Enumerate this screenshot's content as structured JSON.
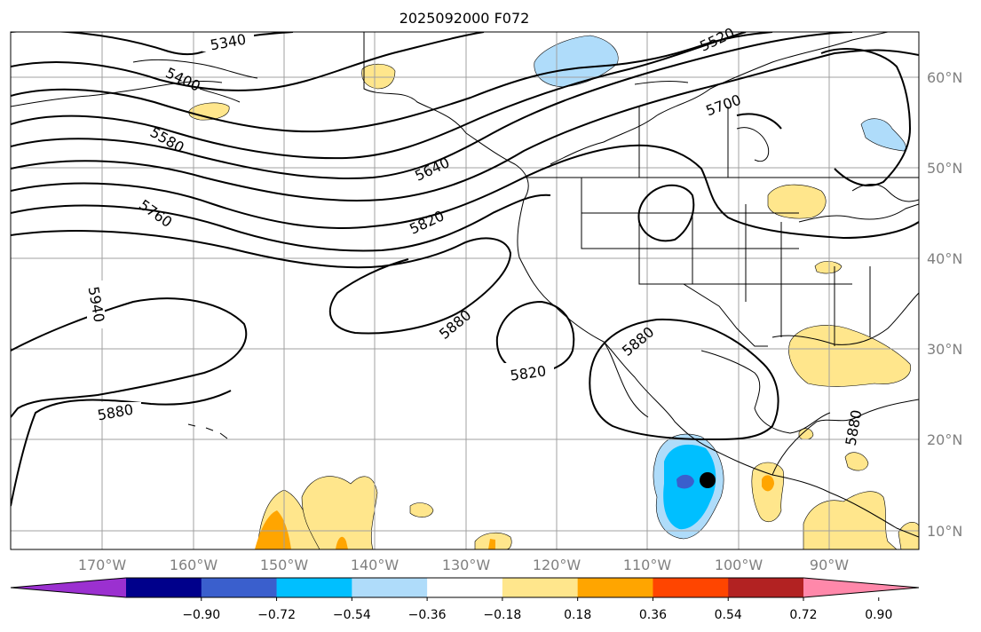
{
  "title": "2025092000 F072",
  "lat_labels": [
    "60°N",
    "50°N",
    "40°N",
    "30°N",
    "20°N",
    "10°N"
  ],
  "lon_labels": [
    "170°W",
    "160°W",
    "150°W",
    "140°W",
    "130°W",
    "120°W",
    "110°W",
    "100°W",
    "90°W"
  ],
  "contour_labels": [
    "5340",
    "5400",
    "5520",
    "5580",
    "5640",
    "5700",
    "5760",
    "5820",
    "5820",
    "5880",
    "5880",
    "5880",
    "5940",
    "5880"
  ],
  "colorbar": {
    "colors": [
      "#9b30d0",
      "#00008b",
      "#3a5fcd",
      "#00bfff",
      "#afdcfa",
      "#ffffff",
      "#ffe68c",
      "#ffa500",
      "#ff4500",
      "#b22222",
      "#ff88aa"
    ],
    "tick_labels": [
      "−0.90",
      "−0.72",
      "−0.54",
      "−0.36",
      "−0.18",
      "0.18",
      "0.36",
      "0.54",
      "0.72",
      "0.90"
    ]
  },
  "marker": {
    "label": "",
    "color": "#000000"
  }
}
